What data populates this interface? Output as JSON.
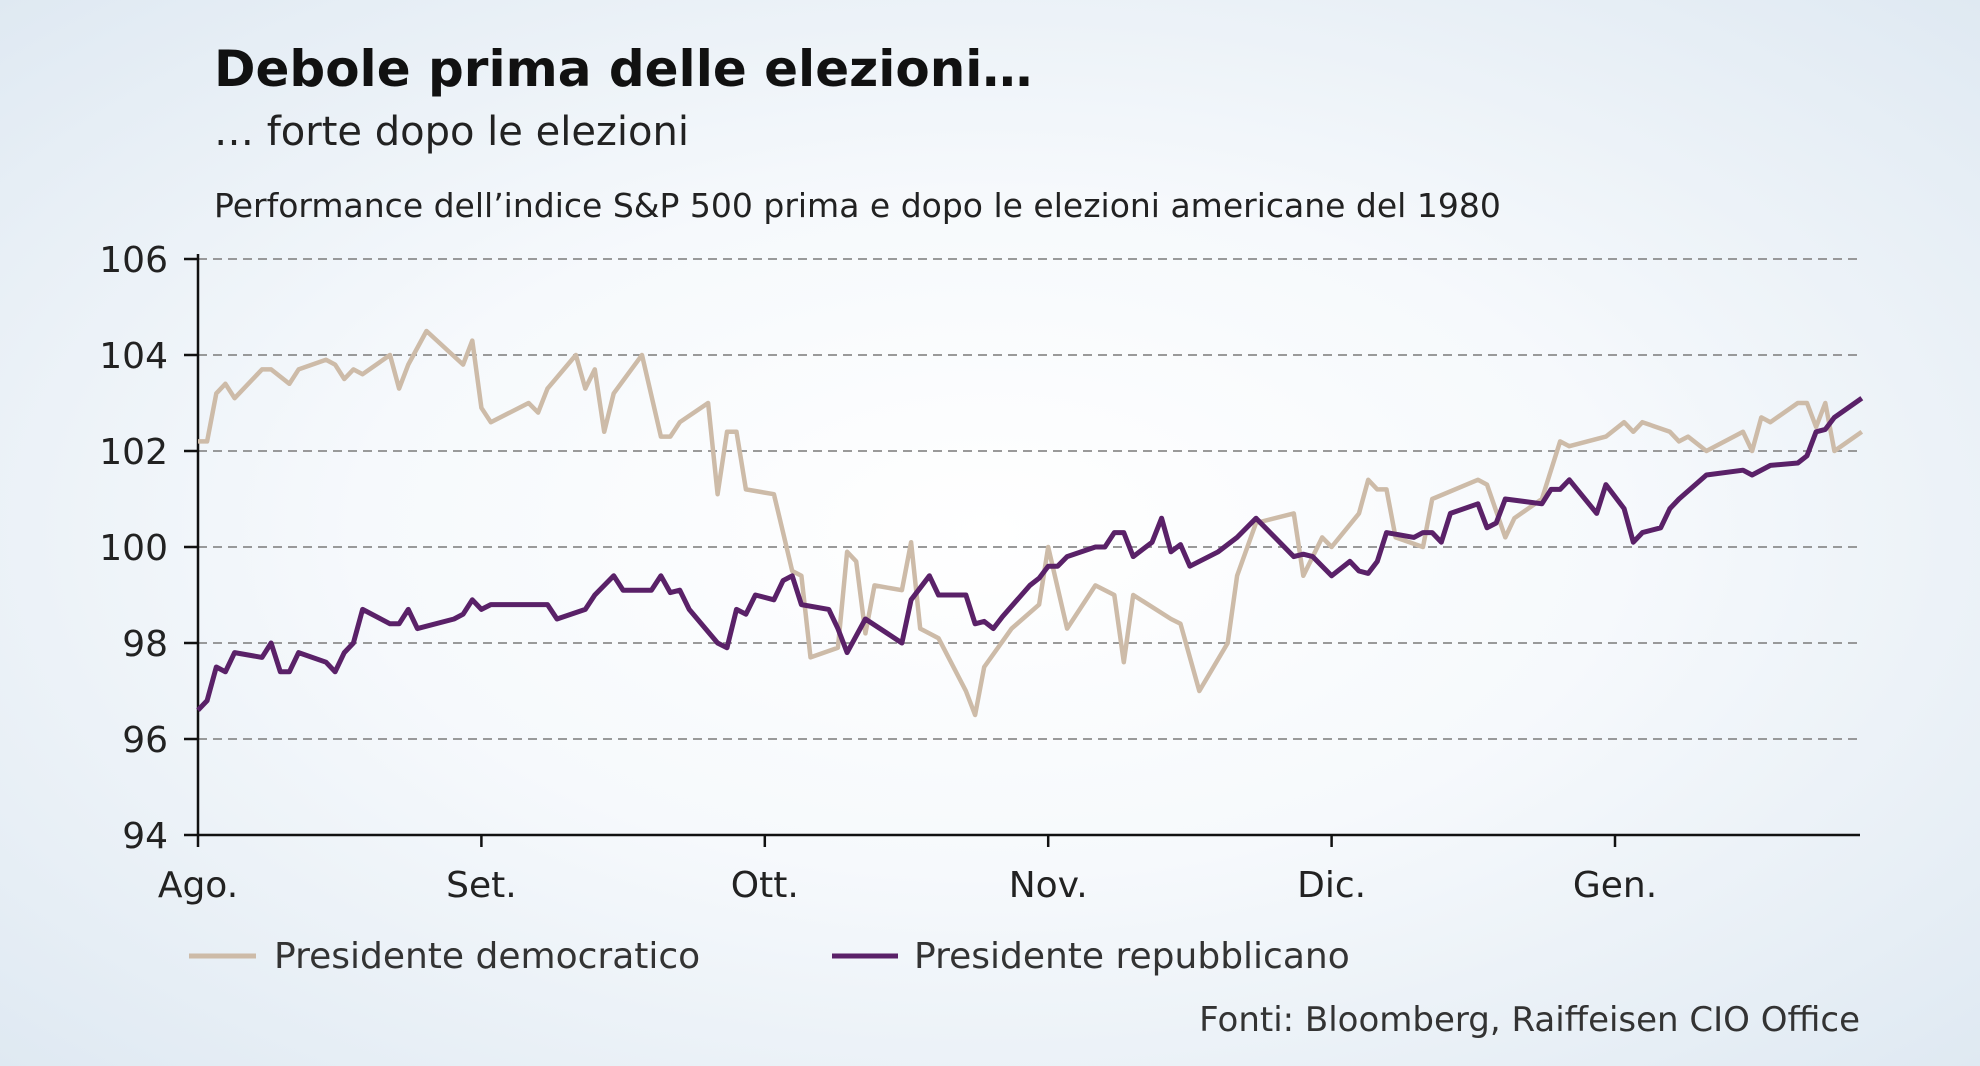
{
  "chart_data": {
    "type": "line",
    "title": "Debole prima delle elezioni…",
    "subtitle": "… forte dopo le elezioni",
    "description": "Performance dell’indice S&P 500 prima e dopo le elezioni americane del 1980",
    "source": "Fonti: Bloomberg, Raiffeisen CIO Office",
    "xlabel": "",
    "ylabel": "",
    "ylim": [
      94,
      106
    ],
    "yticks": [
      "94",
      "96",
      "98",
      "100",
      "102",
      "104",
      "106"
    ],
    "xticks": [
      "Ago.",
      "Set.",
      "Ott.",
      "Nov.",
      "Dic.",
      "Gen."
    ],
    "grid": true,
    "legend_position": "bottom-left",
    "series": [
      {
        "name": "Presidente democratico",
        "color": "#cdbba8",
        "points": [
          [
            "1980-08-01",
            102.2
          ],
          [
            "1980-08-02",
            102.2
          ],
          [
            "1980-08-03",
            103.2
          ],
          [
            "1980-08-04",
            103.4
          ],
          [
            "1980-08-05",
            103.1
          ],
          [
            "1980-08-08",
            103.7
          ],
          [
            "1980-08-09",
            103.7
          ],
          [
            "1980-08-11",
            103.4
          ],
          [
            "1980-08-12",
            103.7
          ],
          [
            "1980-08-15",
            103.9
          ],
          [
            "1980-08-16",
            103.8
          ],
          [
            "1980-08-17",
            103.5
          ],
          [
            "1980-08-18",
            103.7
          ],
          [
            "1980-08-19",
            103.6
          ],
          [
            "1980-08-22",
            104.0
          ],
          [
            "1980-08-23",
            103.3
          ],
          [
            "1980-08-24",
            103.8
          ],
          [
            "1980-08-26",
            104.5
          ],
          [
            "1980-08-30",
            103.8
          ],
          [
            "1980-08-31",
            104.3
          ],
          [
            "1980-09-01",
            102.9
          ],
          [
            "1980-09-02",
            102.6
          ],
          [
            "1980-09-06",
            103.0
          ],
          [
            "1980-09-07",
            102.8
          ],
          [
            "1980-09-08",
            103.3
          ],
          [
            "1980-09-11",
            104.0
          ],
          [
            "1980-09-12",
            103.3
          ],
          [
            "1980-09-13",
            103.7
          ],
          [
            "1980-09-14",
            102.4
          ],
          [
            "1980-09-15",
            103.2
          ],
          [
            "1980-09-18",
            104.0
          ],
          [
            "1980-09-20",
            102.3
          ],
          [
            "1980-09-21",
            102.3
          ],
          [
            "1980-09-22",
            102.6
          ],
          [
            "1980-09-25",
            103.0
          ],
          [
            "1980-09-26",
            101.1
          ],
          [
            "1980-09-27",
            102.4
          ],
          [
            "1980-09-28",
            102.4
          ],
          [
            "1980-09-29",
            101.2
          ],
          [
            "1980-10-02",
            101.1
          ],
          [
            "1980-10-03",
            100.3
          ],
          [
            "1980-10-04",
            99.5
          ],
          [
            "1980-10-05",
            99.4
          ],
          [
            "1980-10-06",
            97.7
          ],
          [
            "1980-10-09",
            97.9
          ],
          [
            "1980-10-10",
            99.9
          ],
          [
            "1980-10-11",
            99.7
          ],
          [
            "1980-10-12",
            98.2
          ],
          [
            "1980-10-13",
            99.2
          ],
          [
            "1980-10-16",
            99.1
          ],
          [
            "1980-10-17",
            100.1
          ],
          [
            "1980-10-18",
            98.3
          ],
          [
            "1980-10-20",
            98.1
          ],
          [
            "1980-10-23",
            97.0
          ],
          [
            "1980-10-24",
            96.5
          ],
          [
            "1980-10-25",
            97.5
          ],
          [
            "1980-10-28",
            98.3
          ],
          [
            "1980-10-31",
            98.8
          ],
          [
            "1980-11-01",
            100.0
          ],
          [
            "1980-11-03",
            98.3
          ],
          [
            "1980-11-06",
            99.2
          ],
          [
            "1980-11-08",
            99.0
          ],
          [
            "1980-11-09",
            97.6
          ],
          [
            "1980-11-10",
            99.0
          ],
          [
            "1980-11-14",
            98.5
          ],
          [
            "1980-11-15",
            98.4
          ],
          [
            "1980-11-17",
            97.0
          ],
          [
            "1980-11-20",
            98.0
          ],
          [
            "1980-11-21",
            99.4
          ],
          [
            "1980-11-23",
            100.5
          ],
          [
            "1980-11-27",
            100.7
          ],
          [
            "1980-11-28",
            99.4
          ],
          [
            "1980-11-30",
            100.2
          ],
          [
            "1980-12-01",
            100.0
          ],
          [
            "1980-12-04",
            100.7
          ],
          [
            "1980-12-05",
            101.4
          ],
          [
            "1980-12-06",
            101.2
          ],
          [
            "1980-12-07",
            101.2
          ],
          [
            "1980-12-08",
            100.2
          ],
          [
            "1980-12-11",
            100.0
          ],
          [
            "1980-12-12",
            101.0
          ],
          [
            "1980-12-17",
            101.4
          ],
          [
            "1980-12-18",
            101.3
          ],
          [
            "1980-12-20",
            100.2
          ],
          [
            "1980-12-21",
            100.6
          ],
          [
            "1980-12-24",
            101.0
          ],
          [
            "1980-12-26",
            102.2
          ],
          [
            "1980-12-27",
            102.1
          ],
          [
            "1980-12-31",
            102.3
          ],
          [
            "1981-01-02",
            102.6
          ],
          [
            "1981-01-03",
            102.4
          ],
          [
            "1981-01-04",
            102.6
          ],
          [
            "1981-01-07",
            102.4
          ],
          [
            "1981-01-08",
            102.2
          ],
          [
            "1981-01-09",
            102.3
          ],
          [
            "1981-01-11",
            102.0
          ],
          [
            "1981-01-15",
            102.4
          ],
          [
            "1981-01-16",
            102.0
          ],
          [
            "1981-01-17",
            102.7
          ],
          [
            "1981-01-18",
            102.6
          ],
          [
            "1981-01-21",
            103.0
          ],
          [
            "1981-01-22",
            103.0
          ],
          [
            "1981-01-23",
            102.5
          ],
          [
            "1981-01-24",
            103.0
          ],
          [
            "1981-01-25",
            102.0
          ],
          [
            "1981-01-28",
            102.4
          ]
        ]
      },
      {
        "name": "Presidente repubblicano",
        "color": "#5a2168",
        "points": [
          [
            "1980-08-01",
            96.6
          ],
          [
            "1980-08-02",
            96.8
          ],
          [
            "1980-08-03",
            97.5
          ],
          [
            "1980-08-04",
            97.4
          ],
          [
            "1980-08-05",
            97.8
          ],
          [
            "1980-08-08",
            97.7
          ],
          [
            "1980-08-09",
            98.0
          ],
          [
            "1980-08-10",
            97.4
          ],
          [
            "1980-08-11",
            97.4
          ],
          [
            "1980-08-12",
            97.8
          ],
          [
            "1980-08-15",
            97.6
          ],
          [
            "1980-08-16",
            97.4
          ],
          [
            "1980-08-17",
            97.8
          ],
          [
            "1980-08-18",
            98.0
          ],
          [
            "1980-08-19",
            98.7
          ],
          [
            "1980-08-22",
            98.4
          ],
          [
            "1980-08-23",
            98.4
          ],
          [
            "1980-08-24",
            98.7
          ],
          [
            "1980-08-25",
            98.3
          ],
          [
            "1980-08-29",
            98.5
          ],
          [
            "1980-08-30",
            98.6
          ],
          [
            "1980-08-31",
            98.9
          ],
          [
            "1980-09-01",
            98.7
          ],
          [
            "1980-09-02",
            98.8
          ],
          [
            "1980-09-08",
            98.8
          ],
          [
            "1980-09-09",
            98.5
          ],
          [
            "1980-09-12",
            98.7
          ],
          [
            "1980-09-13",
            99.0
          ],
          [
            "1980-09-15",
            99.4
          ],
          [
            "1980-09-16",
            99.1
          ],
          [
            "1980-09-19",
            99.1
          ],
          [
            "1980-09-20",
            99.4
          ],
          [
            "1980-09-21",
            99.05
          ],
          [
            "1980-09-22",
            99.1
          ],
          [
            "1980-09-23",
            98.7
          ],
          [
            "1980-09-26",
            98.0
          ],
          [
            "1980-09-27",
            97.9
          ],
          [
            "1980-09-28",
            98.7
          ],
          [
            "1980-09-29",
            98.6
          ],
          [
            "1980-09-30",
            99.0
          ],
          [
            "1980-10-02",
            98.9
          ],
          [
            "1980-10-03",
            99.3
          ],
          [
            "1980-10-04",
            99.4
          ],
          [
            "1980-10-05",
            98.8
          ],
          [
            "1980-10-08",
            98.7
          ],
          [
            "1980-10-09",
            98.3
          ],
          [
            "1980-10-10",
            97.8
          ],
          [
            "1980-10-12",
            98.5
          ],
          [
            "1980-10-16",
            98.0
          ],
          [
            "1980-10-17",
            98.9
          ],
          [
            "1980-10-19",
            99.4
          ],
          [
            "1980-10-20",
            99.0
          ],
          [
            "1980-10-23",
            99.0
          ],
          [
            "1980-10-24",
            98.4
          ],
          [
            "1980-10-25",
            98.45
          ],
          [
            "1980-10-26",
            98.3
          ],
          [
            "1980-10-27",
            98.55
          ],
          [
            "1980-10-30",
            99.2
          ],
          [
            "1980-10-31",
            99.35
          ],
          [
            "1980-11-01",
            99.6
          ],
          [
            "1980-11-02",
            99.6
          ],
          [
            "1980-11-03",
            99.8
          ],
          [
            "1980-11-06",
            100.0
          ],
          [
            "1980-11-07",
            100.0
          ],
          [
            "1980-11-08",
            100.3
          ],
          [
            "1980-11-09",
            100.3
          ],
          [
            "1980-11-10",
            99.8
          ],
          [
            "1980-11-12",
            100.1
          ],
          [
            "1980-11-13",
            100.6
          ],
          [
            "1980-11-14",
            99.9
          ],
          [
            "1980-11-15",
            100.05
          ],
          [
            "1980-11-16",
            99.6
          ],
          [
            "1980-11-19",
            99.9
          ],
          [
            "1980-11-21",
            100.2
          ],
          [
            "1980-11-23",
            100.6
          ],
          [
            "1980-11-25",
            100.2
          ],
          [
            "1980-11-27",
            99.8
          ],
          [
            "1980-11-28",
            99.85
          ],
          [
            "1980-11-29",
            99.8
          ],
          [
            "1980-12-01",
            99.4
          ],
          [
            "1980-12-03",
            99.7
          ],
          [
            "1980-12-04",
            99.5
          ],
          [
            "1980-12-05",
            99.45
          ],
          [
            "1980-12-06",
            99.7
          ],
          [
            "1980-12-07",
            100.3
          ],
          [
            "1980-12-10",
            100.2
          ],
          [
            "1980-12-11",
            100.3
          ],
          [
            "1980-12-12",
            100.3
          ],
          [
            "1980-12-13",
            100.1
          ],
          [
            "1980-12-14",
            100.7
          ],
          [
            "1980-12-17",
            100.9
          ],
          [
            "1980-12-18",
            100.4
          ],
          [
            "1980-12-19",
            100.5
          ],
          [
            "1980-12-20",
            101.0
          ],
          [
            "1980-12-24",
            100.9
          ],
          [
            "1980-12-25",
            101.2
          ],
          [
            "1980-12-26",
            101.2
          ],
          [
            "1980-12-27",
            101.4
          ],
          [
            "1980-12-30",
            100.7
          ],
          [
            "1980-12-31",
            101.3
          ],
          [
            "1981-01-02",
            100.8
          ],
          [
            "1981-01-03",
            100.1
          ],
          [
            "1981-01-04",
            100.3
          ],
          [
            "1981-01-06",
            100.4
          ],
          [
            "1981-01-07",
            100.8
          ],
          [
            "1981-01-08",
            101.0
          ],
          [
            "1981-01-11",
            101.5
          ],
          [
            "1981-01-15",
            101.6
          ],
          [
            "1981-01-16",
            101.5
          ],
          [
            "1981-01-18",
            101.7
          ],
          [
            "1981-01-21",
            101.75
          ],
          [
            "1981-01-22",
            101.9
          ],
          [
            "1981-01-23",
            102.4
          ],
          [
            "1981-01-24",
            102.45
          ],
          [
            "1981-01-25",
            102.7
          ],
          [
            "1981-01-28",
            103.1
          ]
        ]
      }
    ]
  }
}
